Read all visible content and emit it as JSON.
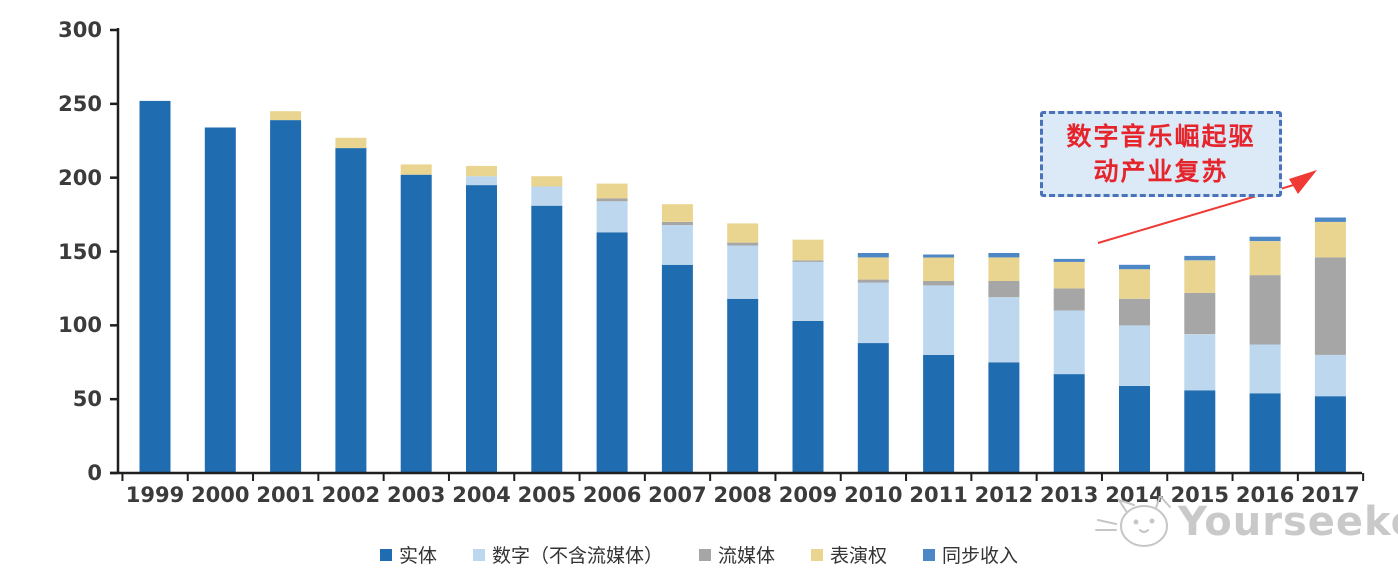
{
  "chart_data": {
    "type": "bar",
    "stacked": true,
    "title": "",
    "xlabel": "",
    "ylabel": "",
    "categories": [
      "1999",
      "2000",
      "2001",
      "2002",
      "2003",
      "2004",
      "2005",
      "2006",
      "2007",
      "2008",
      "2009",
      "2010",
      "2011",
      "2012",
      "2013",
      "2014",
      "2015",
      "2016",
      "2017"
    ],
    "series": [
      {
        "name": "实体",
        "color": "#1f6cb0",
        "values": [
          252,
          234,
          239,
          220,
          202,
          195,
          181,
          163,
          141,
          118,
          103,
          88,
          80,
          75,
          67,
          59,
          56,
          54,
          52
        ]
      },
      {
        "name": "数字（不含流媒体）",
        "color": "#bdd7ee",
        "values": [
          0,
          0,
          0,
          0,
          0,
          6,
          13,
          21,
          27,
          36,
          40,
          41,
          47,
          44,
          43,
          41,
          38,
          33,
          28
        ]
      },
      {
        "name": "流媒体",
        "color": "#a6a6a6",
        "values": [
          0,
          0,
          0,
          0,
          0,
          0,
          0,
          2,
          2,
          2,
          1,
          2,
          3,
          11,
          15,
          18,
          28,
          47,
          66
        ]
      },
      {
        "name": "表演权",
        "color": "#e9d58f",
        "values": [
          0,
          0,
          6,
          7,
          7,
          7,
          7,
          10,
          12,
          13,
          14,
          15,
          16,
          16,
          18,
          20,
          22,
          23,
          24
        ]
      },
      {
        "name": "同步收入",
        "color": "#4d87c6",
        "values": [
          0,
          0,
          0,
          0,
          0,
          0,
          0,
          0,
          0,
          0,
          0,
          3,
          2,
          3,
          2,
          3,
          3,
          3,
          3
        ]
      }
    ],
    "ylim": [
      0,
      300
    ],
    "yticks": [
      0,
      50,
      100,
      150,
      200,
      250,
      300
    ],
    "grid": false,
    "legend_position": "bottom"
  },
  "annotation": {
    "text": "数字音乐崛起驱动产业复苏",
    "lines": [
      "数字音乐崛起驱",
      "动产业复苏"
    ],
    "text_color": "#e5252b",
    "box_fill": "#dce9f7",
    "box_border": "#4a72b8",
    "arrow_color": "#ef3a36"
  },
  "watermark": {
    "text": "Yourseeker"
  }
}
